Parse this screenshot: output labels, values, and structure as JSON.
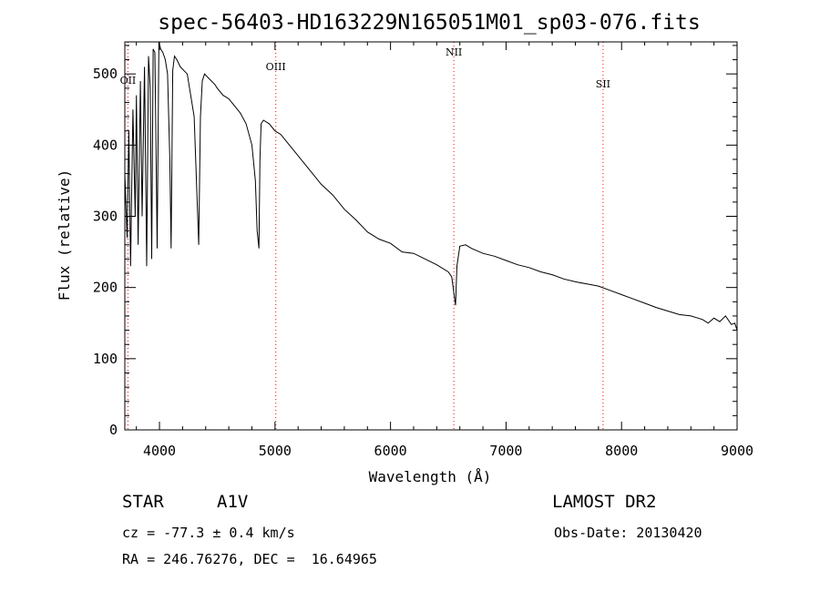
{
  "chart_data": {
    "type": "line",
    "title": "spec-56403-HD163229N165051M01_sp03-076.fits",
    "xlabel": "Wavelength (Å)",
    "ylabel": "Flux (relative)",
    "xlim": [
      3700,
      9000
    ],
    "ylim": [
      0,
      545
    ],
    "xticks": [
      4000,
      5000,
      6000,
      7000,
      8000,
      9000
    ],
    "yticks": [
      0,
      100,
      200,
      300,
      400,
      500
    ],
    "grid": false,
    "series": [
      {
        "x": [
          3700,
          3720,
          3735,
          3750,
          3770,
          3790,
          3800,
          3815,
          3835,
          3850,
          3870,
          3889,
          3905,
          3920,
          3933,
          3945,
          3960,
          3970,
          3980,
          3995,
          4010,
          4030,
          4050,
          4070,
          4090,
          4101,
          4115,
          4130,
          4150,
          4180,
          4210,
          4240,
          4270,
          4300,
          4320,
          4340,
          4355,
          4370,
          4390,
          4420,
          4450,
          4480,
          4500,
          4550,
          4600,
          4650,
          4700,
          4750,
          4800,
          4830,
          4845,
          4861,
          4870,
          4880,
          4900,
          4950,
          5000,
          5050,
          5100,
          5150,
          5200,
          5300,
          5400,
          5500,
          5600,
          5700,
          5800,
          5900,
          6000,
          6100,
          6200,
          6300,
          6400,
          6500,
          6530,
          6550,
          6563,
          6575,
          6600,
          6650,
          6700,
          6800,
          6900,
          7000,
          7100,
          7200,
          7300,
          7400,
          7500,
          7600,
          7700,
          7800,
          7900,
          8000,
          8100,
          8200,
          8300,
          8400,
          8500,
          8600,
          8700,
          8750,
          8800,
          8850,
          8900,
          8950,
          8980,
          9000
        ],
        "y": [
          360,
          270,
          420,
          230,
          450,
          300,
          470,
          260,
          490,
          300,
          510,
          230,
          525,
          480,
          240,
          535,
          530,
          400,
          255,
          545,
          535,
          530,
          520,
          500,
          380,
          255,
          505,
          525,
          520,
          510,
          505,
          500,
          470,
          440,
          350,
          260,
          440,
          490,
          500,
          495,
          490,
          485,
          480,
          470,
          465,
          455,
          445,
          430,
          400,
          350,
          280,
          255,
          380,
          430,
          435,
          430,
          420,
          415,
          405,
          395,
          385,
          365,
          345,
          330,
          310,
          295,
          278,
          268,
          262,
          250,
          248,
          240,
          232,
          222,
          215,
          190,
          175,
          230,
          258,
          260,
          255,
          248,
          244,
          238,
          232,
          228,
          222,
          218,
          212,
          208,
          205,
          202,
          196,
          190,
          184,
          178,
          172,
          167,
          162,
          160,
          155,
          150,
          157,
          152,
          160,
          148,
          150,
          140
        ]
      }
    ],
    "line_markers": [
      {
        "label": "OII",
        "x": 3727
      },
      {
        "label": "OIII",
        "x": 5007
      },
      {
        "label": "NII",
        "x": 6548
      },
      {
        "label": "SII",
        "x": 7840
      }
    ],
    "marker_color": "#ff0000"
  },
  "info": {
    "object_type": "STAR",
    "subclass": "A1V",
    "survey": "LAMOST DR2",
    "redshift_text": "cz = -77.3 ± 0.4 km/s",
    "obs_date_text": "Obs-Date: 20130420",
    "coords_text": "RA = 246.76276, DEC =  16.64965"
  }
}
